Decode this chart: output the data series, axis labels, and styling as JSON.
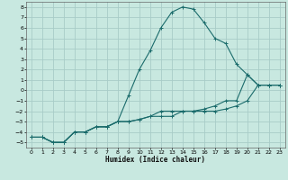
{
  "xlabel": "Humidex (Indice chaleur)",
  "bg_color": "#c8e8e0",
  "grid_color": "#a8ccc8",
  "line_color": "#1a6b6b",
  "xlim": [
    -0.5,
    23.5
  ],
  "ylim": [
    -5.5,
    8.5
  ],
  "xticks": [
    0,
    1,
    2,
    3,
    4,
    5,
    6,
    7,
    8,
    9,
    10,
    11,
    12,
    13,
    14,
    15,
    16,
    17,
    18,
    19,
    20,
    21,
    22,
    23
  ],
  "yticks": [
    -5,
    -4,
    -3,
    -2,
    -1,
    0,
    1,
    2,
    3,
    4,
    5,
    6,
    7,
    8
  ],
  "series1_x": [
    0,
    1,
    2,
    3,
    4,
    5,
    6,
    7,
    8,
    9,
    10,
    11,
    12,
    13,
    14,
    15,
    16,
    17,
    18,
    19,
    20,
    21,
    22,
    23
  ],
  "series1_y": [
    -4.5,
    -4.5,
    -5,
    -5,
    -4,
    -4,
    -3.5,
    -3.5,
    -3,
    -0.5,
    2,
    3.8,
    6,
    7.5,
    8,
    7.8,
    6.5,
    5,
    4.5,
    2.5,
    1.5,
    0.5,
    0.5,
    0.5
  ],
  "series2_x": [
    0,
    1,
    2,
    3,
    4,
    5,
    6,
    7,
    8,
    9,
    10,
    11,
    12,
    13,
    14,
    15,
    16,
    17,
    18,
    19,
    20,
    21,
    22,
    23
  ],
  "series2_y": [
    -4.5,
    -4.5,
    -5,
    -5,
    -4,
    -4,
    -3.5,
    -3.5,
    -3,
    -3,
    -2.8,
    -2.5,
    -2.5,
    -2.5,
    -2,
    -2,
    -1.8,
    -1.5,
    -1,
    -1,
    1.5,
    0.5,
    0.5,
    0.5
  ],
  "series3_x": [
    0,
    1,
    2,
    3,
    4,
    5,
    6,
    7,
    8,
    9,
    10,
    11,
    12,
    13,
    14,
    15,
    16,
    17,
    18,
    19,
    20,
    21,
    22,
    23
  ],
  "series3_y": [
    -4.5,
    -4.5,
    -5,
    -5,
    -4,
    -4,
    -3.5,
    -3.5,
    -3,
    -3,
    -2.8,
    -2.5,
    -2,
    -2,
    -2,
    -2,
    -2,
    -2,
    -1.8,
    -1.5,
    -1,
    0.5,
    0.5,
    0.5
  ]
}
